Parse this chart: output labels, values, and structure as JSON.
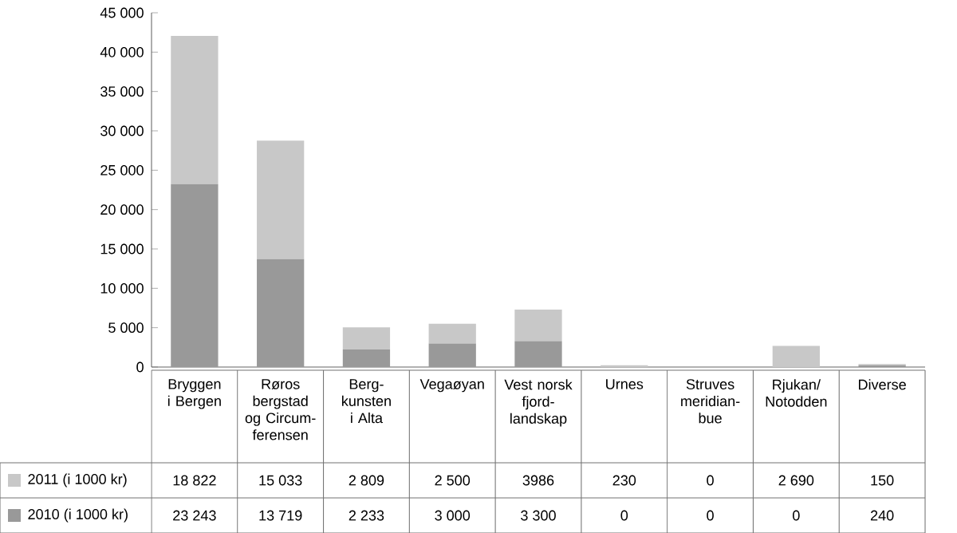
{
  "chart_data": {
    "type": "bar",
    "stacked": true,
    "categories": [
      "Bryggen i Bergen",
      "Røros bergstad og Circum-ferensen",
      "Berg-kunsten i Alta",
      "Vegaøyan",
      "Vest norsk fjord-landskap",
      "Urnes",
      "Struves meridian-bue",
      "Rjukan/ Notodden",
      "Diverse"
    ],
    "series": [
      {
        "name": "2010 (i 1000 kr)",
        "color": "#999999",
        "values": [
          23243,
          13719,
          2233,
          3000,
          3300,
          0,
          0,
          0,
          240
        ],
        "value_labels": [
          "23 243",
          "13 719",
          "2 233",
          "3 000",
          "3 300",
          "0",
          "0",
          "0",
          "240"
        ]
      },
      {
        "name": "2011 (i 1000 kr)",
        "color": "#c8c8c8",
        "values": [
          18822,
          15033,
          2809,
          2500,
          3986,
          230,
          0,
          2690,
          150
        ],
        "value_labels": [
          "18 822",
          "15 033",
          "2 809",
          "2 500",
          "3986",
          "230",
          "0",
          "2 690",
          "150"
        ]
      }
    ],
    "ylim": [
      0,
      45000
    ],
    "yticks": [
      0,
      {
        "value": 5000,
        "label": "5 000"
      },
      {
        "value": 10000,
        "label": "10 000"
      },
      {
        "value": 15000,
        "label": "15 000"
      },
      {
        "value": 20000,
        "label": "20 000"
      },
      {
        "value": 25000,
        "label": "25 000"
      },
      {
        "value": 30000,
        "label": "30 000"
      },
      {
        "value": 35000,
        "label": "35 000"
      },
      {
        "value": 40000,
        "label": "40 000"
      },
      {
        "value": 45000,
        "label": "45 000"
      }
    ],
    "legend": "bottom left"
  }
}
